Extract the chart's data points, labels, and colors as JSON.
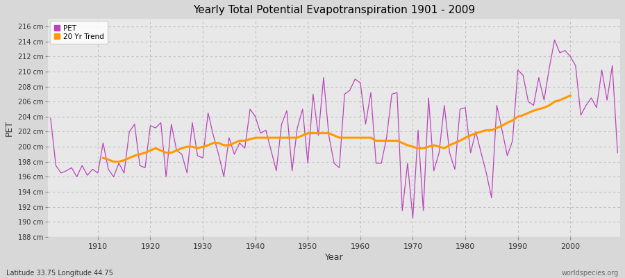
{
  "title": "Yearly Total Potential Evapotranspiration 1901 - 2009",
  "xlabel": "Year",
  "ylabel": "PET",
  "x_label_bottom": "Latitude 33.75 Longitude 44.75",
  "x_label_right": "worldspecies.org",
  "ylim": [
    188,
    217
  ],
  "yticks": [
    188,
    190,
    192,
    194,
    196,
    198,
    200,
    202,
    204,
    206,
    208,
    210,
    212,
    214,
    216
  ],
  "ytick_labels": [
    "188 cm",
    "190 cm",
    "192 cm",
    "194 cm",
    "196 cm",
    "198 cm",
    "200 cm",
    "202 cm",
    "204 cm",
    "206 cm",
    "208 cm",
    "210 cm",
    "212 cm",
    "214 cm",
    "216 cm"
  ],
  "xticks": [
    1910,
    1920,
    1930,
    1940,
    1950,
    1960,
    1970,
    1980,
    1990,
    2000
  ],
  "pet_color": "#bb44bb",
  "trend_color": "#ff9900",
  "background_color": "#d8d8d8",
  "plot_bg_color": "#e8e8e8",
  "grid_color": "#c0c0c0",
  "legend_labels": [
    "PET",
    "20 Yr Trend"
  ],
  "years": [
    1901,
    1902,
    1903,
    1904,
    1905,
    1906,
    1907,
    1908,
    1909,
    1910,
    1911,
    1912,
    1913,
    1914,
    1915,
    1916,
    1917,
    1918,
    1919,
    1920,
    1921,
    1922,
    1923,
    1924,
    1925,
    1926,
    1927,
    1928,
    1929,
    1930,
    1931,
    1932,
    1933,
    1934,
    1935,
    1936,
    1937,
    1938,
    1939,
    1940,
    1941,
    1942,
    1943,
    1944,
    1945,
    1946,
    1947,
    1948,
    1949,
    1950,
    1951,
    1952,
    1953,
    1954,
    1955,
    1956,
    1957,
    1958,
    1959,
    1960,
    1961,
    1962,
    1963,
    1964,
    1965,
    1966,
    1967,
    1968,
    1969,
    1970,
    1971,
    1972,
    1973,
    1974,
    1975,
    1976,
    1977,
    1978,
    1979,
    1980,
    1981,
    1982,
    1983,
    1984,
    1985,
    1986,
    1987,
    1988,
    1989,
    1990,
    1991,
    1992,
    1993,
    1994,
    1995,
    1996,
    1997,
    1998,
    1999,
    2000,
    2001,
    2002,
    2003,
    2004,
    2005,
    2006,
    2007,
    2008,
    2009
  ],
  "pet_values": [
    203.8,
    197.5,
    196.5,
    196.8,
    197.2,
    196.0,
    197.5,
    196.2,
    197.0,
    196.5,
    200.5,
    197.0,
    196.0,
    197.8,
    196.5,
    202.0,
    203.0,
    197.5,
    197.2,
    202.8,
    202.5,
    203.2,
    196.0,
    203.0,
    199.5,
    199.0,
    196.5,
    203.2,
    198.8,
    198.5,
    204.5,
    201.5,
    199.0,
    196.0,
    201.2,
    199.0,
    200.5,
    199.8,
    205.0,
    204.0,
    201.8,
    202.2,
    199.5,
    196.8,
    203.0,
    204.8,
    196.8,
    202.5,
    205.0,
    197.8,
    207.0,
    201.5,
    209.2,
    201.5,
    197.8,
    197.2,
    207.0,
    207.5,
    209.0,
    208.5,
    203.0,
    207.2,
    197.8,
    197.8,
    201.2,
    207.0,
    207.2,
    191.5,
    197.8,
    190.5,
    202.2,
    191.5,
    206.5,
    196.8,
    199.2,
    205.5,
    199.2,
    197.0,
    205.0,
    205.2,
    199.2,
    202.0,
    199.2,
    196.5,
    193.2,
    205.5,
    202.2,
    198.8,
    200.8,
    210.2,
    209.5,
    206.0,
    205.5,
    209.2,
    206.2,
    210.5,
    214.2,
    212.5,
    212.8,
    212.0,
    210.8,
    204.2,
    205.5,
    206.5,
    205.2,
    210.2,
    206.2,
    210.8,
    199.2
  ],
  "trend_values": [
    null,
    null,
    null,
    null,
    null,
    null,
    null,
    null,
    null,
    null,
    198.5,
    198.3,
    198.0,
    198.0,
    198.2,
    198.5,
    198.8,
    199.0,
    199.2,
    199.5,
    199.8,
    199.5,
    199.2,
    199.2,
    199.5,
    199.8,
    200.0,
    200.0,
    199.8,
    200.0,
    200.2,
    200.5,
    200.5,
    200.2,
    200.2,
    200.5,
    200.8,
    200.8,
    201.0,
    201.2,
    201.2,
    201.2,
    201.2,
    201.2,
    201.2,
    201.2,
    201.2,
    201.2,
    201.5,
    201.8,
    201.8,
    201.8,
    201.8,
    201.8,
    201.5,
    201.2,
    201.2,
    201.2,
    201.2,
    201.2,
    201.2,
    201.2,
    200.8,
    200.8,
    200.8,
    200.8,
    200.8,
    200.5,
    200.2,
    200.0,
    199.8,
    199.8,
    200.0,
    200.2,
    200.0,
    199.8,
    200.2,
    200.5,
    200.8,
    201.2,
    201.5,
    201.8,
    202.0,
    202.2,
    202.2,
    202.5,
    202.8,
    203.2,
    203.5,
    204.0,
    204.2,
    204.5,
    204.8,
    205.0,
    205.2,
    205.5,
    206.0,
    206.2,
    206.5,
    206.8,
    null,
    null,
    null,
    null,
    null,
    null,
    null,
    null,
    null
  ]
}
